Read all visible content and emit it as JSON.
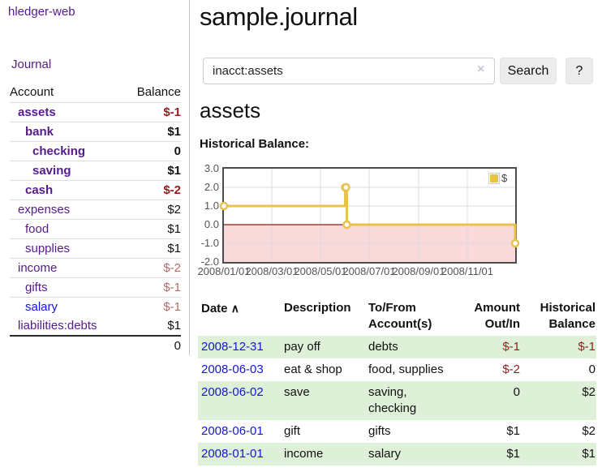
{
  "sidebar": {
    "brand": "hledger-web",
    "nav": {
      "journal": "Journal"
    },
    "accounts": {
      "header": {
        "account": "Account",
        "balance": "Balance"
      },
      "rows": [
        {
          "name": "assets",
          "depth": 1,
          "bold": true,
          "balance": "$-1",
          "balance_class": "neg-strong"
        },
        {
          "name": "bank",
          "depth": 2,
          "bold": true,
          "balance": "$1",
          "balance_class": "pos"
        },
        {
          "name": "checking",
          "depth": 3,
          "bold": true,
          "balance": "0",
          "balance_class": "pos"
        },
        {
          "name": "saving",
          "depth": 3,
          "bold": true,
          "balance": "$1",
          "balance_class": "pos"
        },
        {
          "name": "cash",
          "depth": 2,
          "bold": true,
          "balance": "$-2",
          "balance_class": "neg-strong"
        },
        {
          "name": "expenses",
          "depth": 1,
          "bold": false,
          "balance": "$2",
          "balance_class": "pos"
        },
        {
          "name": "food",
          "depth": 2,
          "bold": false,
          "balance": "$1",
          "balance_class": "pos"
        },
        {
          "name": "supplies",
          "depth": 2,
          "bold": false,
          "balance": "$1",
          "balance_class": "pos"
        },
        {
          "name": "income",
          "depth": 1,
          "bold": false,
          "balance": "$-2",
          "balance_class": "neg-soft"
        },
        {
          "name": "gifts",
          "depth": 2,
          "bold": false,
          "balance": "$-1",
          "balance_class": "neg-soft"
        },
        {
          "name": "salary",
          "depth": 2,
          "bold": false,
          "balance": "$-1",
          "balance_class": "neg-soft",
          "link_class": "blue"
        },
        {
          "name": "liabilities:debts",
          "depth": 1,
          "bold": false,
          "balance": "$1",
          "balance_class": "pos"
        }
      ],
      "total": "0"
    }
  },
  "main": {
    "title": "sample.journal",
    "search": {
      "value": "inacct:assets",
      "clear_icon": "×",
      "button_label": "Search",
      "help_label": "?"
    },
    "account_heading": "assets",
    "chart_title": "Historical Balance:"
  },
  "chart_data": {
    "type": "line",
    "step": true,
    "title": "Historical Balance",
    "series": [
      {
        "name": "$",
        "color": "#e8c24a",
        "points": [
          [
            "2008-01-01",
            1
          ],
          [
            "2008-06-01",
            2
          ],
          [
            "2008-06-02",
            2
          ],
          [
            "2008-06-03",
            0
          ],
          [
            "2008-12-31",
            -1
          ]
        ]
      }
    ],
    "xlim": [
      "2008-01-01",
      "2008-12-31"
    ],
    "ylim": [
      -2,
      3
    ],
    "yticks": [
      {
        "v": 3,
        "label": "3.0"
      },
      {
        "v": 2,
        "label": "2.0"
      },
      {
        "v": 1,
        "label": "1.0"
      },
      {
        "v": 0,
        "label": "0.0"
      },
      {
        "v": -1,
        "label": "-1.0"
      },
      {
        "v": -2,
        "label": "-2.0"
      }
    ],
    "xticks": [
      {
        "date": "2008-01-01",
        "label": "2008/01/01"
      },
      {
        "date": "2008-03-01",
        "label": "2008/03/01"
      },
      {
        "date": "2008-05-01",
        "label": "2008/05/01"
      },
      {
        "date": "2008-07-01",
        "label": "2008/07/01"
      },
      {
        "date": "2008-09-01",
        "label": "2008/09/01"
      },
      {
        "date": "2008-11-01",
        "label": "2008/11/01"
      }
    ],
    "grid": true,
    "negative_region_color": "#f9d9d9",
    "zero_line_color": "#8c1a1a",
    "legend": {
      "label": "$",
      "position": "top-right"
    }
  },
  "register_table": {
    "headers": [
      "Date",
      "Description",
      "To/From Account(s)",
      "Amount Out/In",
      "Historical Balance"
    ],
    "sort_icon": "∧",
    "rows": [
      {
        "date": "2008-12-31",
        "description": "pay off",
        "accounts": [
          "debts"
        ],
        "amount": "$-1",
        "amount_class": "neg",
        "balance": "$-1",
        "balance_class": "neg"
      },
      {
        "date": "2008-06-03",
        "description": "eat & shop",
        "accounts": [
          "food, supplies"
        ],
        "amount": "$-2",
        "amount_class": "neg",
        "balance": "0",
        "balance_class": "pos"
      },
      {
        "date": "2008-06-02",
        "description": "save",
        "accounts": [
          "saving,",
          "checking"
        ],
        "amount": "0",
        "amount_class": "pos",
        "balance": "$2",
        "balance_class": "pos"
      },
      {
        "date": "2008-06-01",
        "description": "gift",
        "accounts": [
          "gifts"
        ],
        "amount": "$1",
        "amount_class": "pos",
        "balance": "$2",
        "balance_class": "pos"
      },
      {
        "date": "2008-01-01",
        "description": "income",
        "accounts": [
          "salary"
        ],
        "amount": "$1",
        "amount_class": "pos",
        "balance": "$1",
        "balance_class": "pos"
      }
    ]
  },
  "colors": {
    "link_purple": "#551a8b",
    "link_blue": "#1414dd",
    "negative_strong": "#961c1c",
    "negative_soft": "#b56a6a",
    "row_stripe_green": "#dff0d8",
    "chart_line_gold": "#e8c24a",
    "chart_negative_pink": "#f9d9d9",
    "chart_zero_line": "#8c1a1a"
  }
}
